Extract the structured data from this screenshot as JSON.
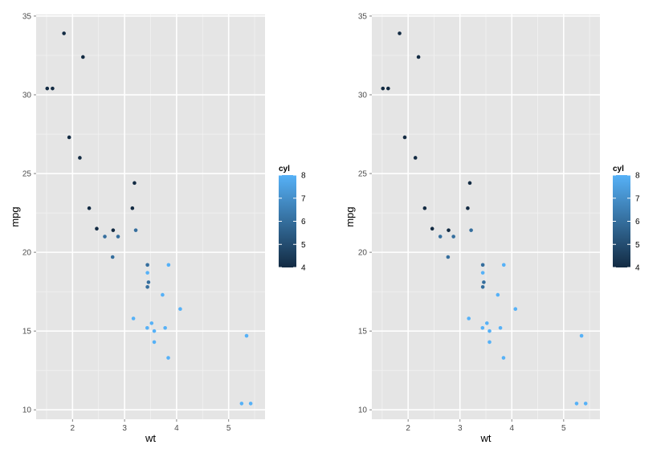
{
  "chart_data": [
    {
      "type": "scatter",
      "xlabel": "wt",
      "ylabel": "mpg",
      "xlim": [
        1.3,
        5.7
      ],
      "ylim": [
        9.4,
        35.1
      ],
      "xticks": [
        2,
        3,
        4,
        5
      ],
      "yticks": [
        10,
        15,
        20,
        25,
        30,
        35
      ],
      "grid": true,
      "legend": {
        "title": "cyl",
        "position": "right",
        "ticks": [
          4,
          5,
          6,
          7,
          8
        ],
        "range": [
          4,
          8
        ]
      },
      "color_scale": {
        "low": "#132b43",
        "high": "#56b1f7"
      },
      "points": [
        {
          "x": 1.513,
          "y": 30.4,
          "c": 4
        },
        {
          "x": 1.615,
          "y": 30.4,
          "c": 4
        },
        {
          "x": 1.835,
          "y": 33.9,
          "c": 4
        },
        {
          "x": 1.935,
          "y": 27.3,
          "c": 4
        },
        {
          "x": 2.14,
          "y": 26.0,
          "c": 4
        },
        {
          "x": 2.2,
          "y": 32.4,
          "c": 4
        },
        {
          "x": 2.32,
          "y": 22.8,
          "c": 4
        },
        {
          "x": 2.465,
          "y": 21.5,
          "c": 4
        },
        {
          "x": 2.62,
          "y": 21.0,
          "c": 6
        },
        {
          "x": 2.77,
          "y": 19.7,
          "c": 6
        },
        {
          "x": 2.78,
          "y": 21.4,
          "c": 4
        },
        {
          "x": 2.875,
          "y": 21.0,
          "c": 6
        },
        {
          "x": 3.15,
          "y": 22.8,
          "c": 4
        },
        {
          "x": 3.17,
          "y": 15.8,
          "c": 8
        },
        {
          "x": 3.19,
          "y": 24.4,
          "c": 4
        },
        {
          "x": 3.215,
          "y": 21.4,
          "c": 6
        },
        {
          "x": 3.435,
          "y": 15.2,
          "c": 8
        },
        {
          "x": 3.44,
          "y": 18.7,
          "c": 8
        },
        {
          "x": 3.44,
          "y": 19.2,
          "c": 6
        },
        {
          "x": 3.44,
          "y": 17.8,
          "c": 6
        },
        {
          "x": 3.46,
          "y": 18.1,
          "c": 6
        },
        {
          "x": 3.52,
          "y": 15.5,
          "c": 8
        },
        {
          "x": 3.57,
          "y": 14.3,
          "c": 8
        },
        {
          "x": 3.57,
          "y": 15.0,
          "c": 8
        },
        {
          "x": 3.73,
          "y": 17.3,
          "c": 8
        },
        {
          "x": 3.78,
          "y": 15.2,
          "c": 8
        },
        {
          "x": 3.84,
          "y": 13.3,
          "c": 8
        },
        {
          "x": 3.845,
          "y": 19.2,
          "c": 8
        },
        {
          "x": 4.07,
          "y": 16.4,
          "c": 8
        },
        {
          "x": 5.25,
          "y": 10.4,
          "c": 8
        },
        {
          "x": 5.345,
          "y": 14.7,
          "c": 8
        },
        {
          "x": 5.424,
          "y": 10.4,
          "c": 8
        }
      ]
    },
    {
      "type": "scatter",
      "xlabel": "wt",
      "ylabel": "mpg",
      "xlim": [
        1.3,
        5.7
      ],
      "ylim": [
        9.4,
        35.1
      ],
      "xticks": [
        2,
        3,
        4,
        5
      ],
      "yticks": [
        10,
        15,
        20,
        25,
        30,
        35
      ],
      "grid": true,
      "legend": {
        "title": "cyl",
        "position": "right",
        "ticks": [
          4,
          5,
          6,
          7,
          8
        ],
        "range": [
          4,
          8
        ]
      },
      "color_scale": {
        "low": "#132b43",
        "high": "#56b1f7"
      },
      "points": [
        {
          "x": 1.513,
          "y": 30.4,
          "c": 4
        },
        {
          "x": 1.615,
          "y": 30.4,
          "c": 4
        },
        {
          "x": 1.835,
          "y": 33.9,
          "c": 4
        },
        {
          "x": 1.935,
          "y": 27.3,
          "c": 4
        },
        {
          "x": 2.14,
          "y": 26.0,
          "c": 4
        },
        {
          "x": 2.2,
          "y": 32.4,
          "c": 4
        },
        {
          "x": 2.32,
          "y": 22.8,
          "c": 4
        },
        {
          "x": 2.465,
          "y": 21.5,
          "c": 4
        },
        {
          "x": 2.62,
          "y": 21.0,
          "c": 6
        },
        {
          "x": 2.77,
          "y": 19.7,
          "c": 6
        },
        {
          "x": 2.78,
          "y": 21.4,
          "c": 4
        },
        {
          "x": 2.875,
          "y": 21.0,
          "c": 6
        },
        {
          "x": 3.15,
          "y": 22.8,
          "c": 4
        },
        {
          "x": 3.17,
          "y": 15.8,
          "c": 8
        },
        {
          "x": 3.19,
          "y": 24.4,
          "c": 4
        },
        {
          "x": 3.215,
          "y": 21.4,
          "c": 6
        },
        {
          "x": 3.435,
          "y": 15.2,
          "c": 8
        },
        {
          "x": 3.44,
          "y": 18.7,
          "c": 8
        },
        {
          "x": 3.44,
          "y": 19.2,
          "c": 6
        },
        {
          "x": 3.44,
          "y": 17.8,
          "c": 6
        },
        {
          "x": 3.46,
          "y": 18.1,
          "c": 6
        },
        {
          "x": 3.52,
          "y": 15.5,
          "c": 8
        },
        {
          "x": 3.57,
          "y": 14.3,
          "c": 8
        },
        {
          "x": 3.57,
          "y": 15.0,
          "c": 8
        },
        {
          "x": 3.73,
          "y": 17.3,
          "c": 8
        },
        {
          "x": 3.78,
          "y": 15.2,
          "c": 8
        },
        {
          "x": 3.84,
          "y": 13.3,
          "c": 8
        },
        {
          "x": 3.845,
          "y": 19.2,
          "c": 8
        },
        {
          "x": 4.07,
          "y": 16.4,
          "c": 8
        },
        {
          "x": 5.25,
          "y": 10.4,
          "c": 8
        },
        {
          "x": 5.345,
          "y": 14.7,
          "c": 8
        },
        {
          "x": 5.424,
          "y": 10.4,
          "c": 8
        }
      ]
    }
  ],
  "colors": {
    "panel_background": "#e5e5e5",
    "grid_major": "#ffffff",
    "grid_minor": "#f2f2f2",
    "tick_label": "#4d4d4d"
  }
}
